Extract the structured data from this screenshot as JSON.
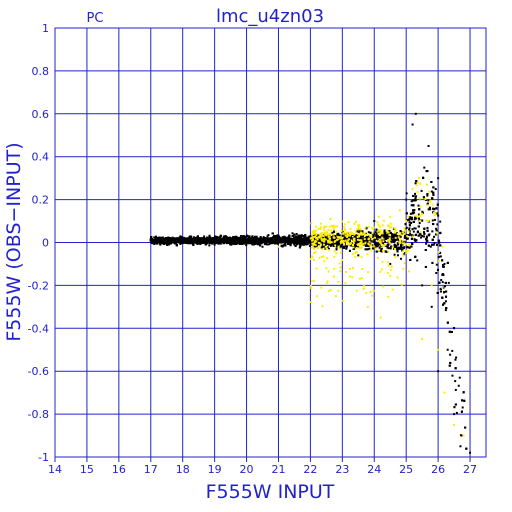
{
  "chart_data": {
    "type": "scatter",
    "title": "lmc_u4zn03",
    "corner_label": "PC",
    "xlabel": "F555W INPUT",
    "ylabel": "F555W (OBS−INPUT)",
    "xlim": [
      14,
      27.5
    ],
    "ylim": [
      -1,
      1
    ],
    "x_ticks": [
      14,
      15,
      16,
      17,
      18,
      19,
      20,
      21,
      22,
      23,
      24,
      25,
      26,
      27
    ],
    "x_tick_labels": [
      "14",
      "15",
      "16",
      "17",
      "18",
      "19",
      "20",
      "21",
      "22",
      "23",
      "24",
      "25",
      "26",
      "27"
    ],
    "y_ticks": [
      1,
      0.8,
      0.6,
      0.4,
      0.2,
      0,
      -0.2,
      -0.4,
      -0.6,
      -0.8,
      -1
    ],
    "y_tick_labels": [
      "1",
      "0.8",
      "0.6",
      "0.4",
      "0.2",
      "0",
      "-0.2",
      "-0.4",
      "-0.6",
      "-0.8",
      "-1"
    ],
    "grid": true,
    "series": [
      {
        "color": "#000000",
        "points": [
          [
            17.0,
            0.01
          ],
          [
            17.3,
            -0.01
          ],
          [
            17.6,
            0.02
          ],
          [
            18.0,
            0.0
          ],
          [
            18.5,
            0.01
          ],
          [
            19.0,
            -0.01
          ],
          [
            19.5,
            0.0
          ],
          [
            20.0,
            0.01
          ],
          [
            20.5,
            -0.02
          ],
          [
            21.0,
            0.02
          ],
          [
            21.5,
            -0.01
          ],
          [
            22.0,
            0.03
          ],
          [
            22.5,
            -0.03
          ],
          [
            23.0,
            0.05
          ],
          [
            23.5,
            -0.06
          ],
          [
            24.0,
            0.1
          ],
          [
            24.5,
            -0.1
          ],
          [
            25.0,
            0.2
          ],
          [
            25.2,
            0.55
          ],
          [
            25.3,
            0.6
          ],
          [
            25.5,
            -0.2
          ],
          [
            25.7,
            0.45
          ],
          [
            25.8,
            -0.3
          ],
          [
            26.0,
            0.3
          ],
          [
            26.0,
            -0.6
          ],
          [
            26.2,
            -0.1
          ],
          [
            26.3,
            -0.5
          ],
          [
            26.5,
            -0.8
          ],
          [
            26.7,
            -0.95
          ],
          [
            27.0,
            -0.98
          ]
        ],
        "density_model": {
          "x_start": 17.0,
          "x_end": 26.9,
          "base_spread": 0.012,
          "spread_growth": 0.055,
          "peak_x": 25.9,
          "offset": 0.01,
          "count": 5200
        }
      },
      {
        "color": "#ffee00",
        "points": [
          [
            21.0,
            -0.02
          ],
          [
            22.5,
            -0.12
          ],
          [
            22.8,
            -0.25
          ],
          [
            23.5,
            0.08
          ],
          [
            23.8,
            -0.3
          ],
          [
            24.2,
            -0.35
          ],
          [
            24.5,
            0.12
          ],
          [
            24.8,
            0.15
          ],
          [
            25.0,
            -0.05
          ],
          [
            25.2,
            0.25
          ],
          [
            25.4,
            0.3
          ],
          [
            25.5,
            -0.45
          ],
          [
            25.7,
            0.1
          ],
          [
            25.8,
            -0.2
          ],
          [
            26.0,
            -0.5
          ],
          [
            26.2,
            -0.7
          ],
          [
            26.5,
            -0.85
          ],
          [
            26.8,
            -0.9
          ]
        ],
        "density_model": {
          "x_start": 22.0,
          "x_end": 26.6,
          "count": 420
        }
      }
    ]
  }
}
